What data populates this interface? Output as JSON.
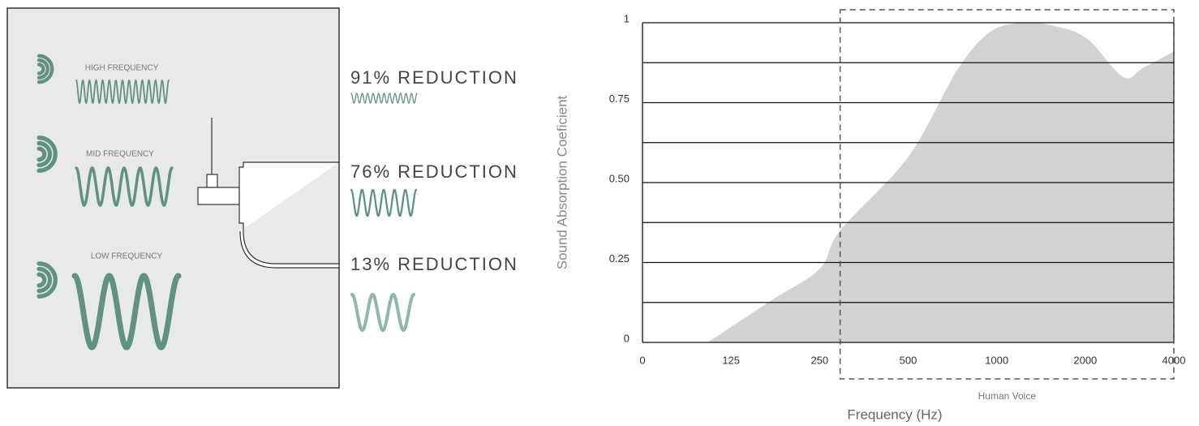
{
  "diagram": {
    "inputs": [
      {
        "label": "HIGH FREQUENCY"
      },
      {
        "label": "MID FREQUENCY"
      },
      {
        "label": "LOW FREQUENCY"
      }
    ],
    "outputs": [
      {
        "label": "91% REDUCTION"
      },
      {
        "label": "76% REDUCTION"
      },
      {
        "label": "13% REDUCTION"
      }
    ]
  },
  "chart_data": {
    "type": "area",
    "color": "#d1d2d4",
    "x_axis_label": "Frequency (Hz)",
    "y_axis_label": "Sound Absorption Coeficient",
    "x": [
      92,
      181,
      250,
      308,
      500,
      775,
      960,
      1290,
      1650,
      2040,
      2860,
      3320,
      4000
    ],
    "values": [
      0,
      0.13,
      0.23,
      0.35,
      0.58,
      0.85,
      0.97,
      1.0,
      0.99,
      0.95,
      0.83,
      0.86,
      0.91
    ],
    "xlim": [
      0,
      4000
    ],
    "xticks": [
      0,
      125,
      250,
      500,
      1000,
      2000,
      4000
    ],
    "ylim": [
      0,
      1
    ],
    "yticks": [
      0,
      0.25,
      {
        "value": 0.5,
        "label": "0.50"
      },
      0.75,
      1
    ],
    "yminorticks": [
      0.125,
      0.375,
      0.625,
      0.875
    ],
    "grid": true,
    "annotation": {
      "label": "Human Voice",
      "range": [
        308,
        4000
      ]
    }
  }
}
